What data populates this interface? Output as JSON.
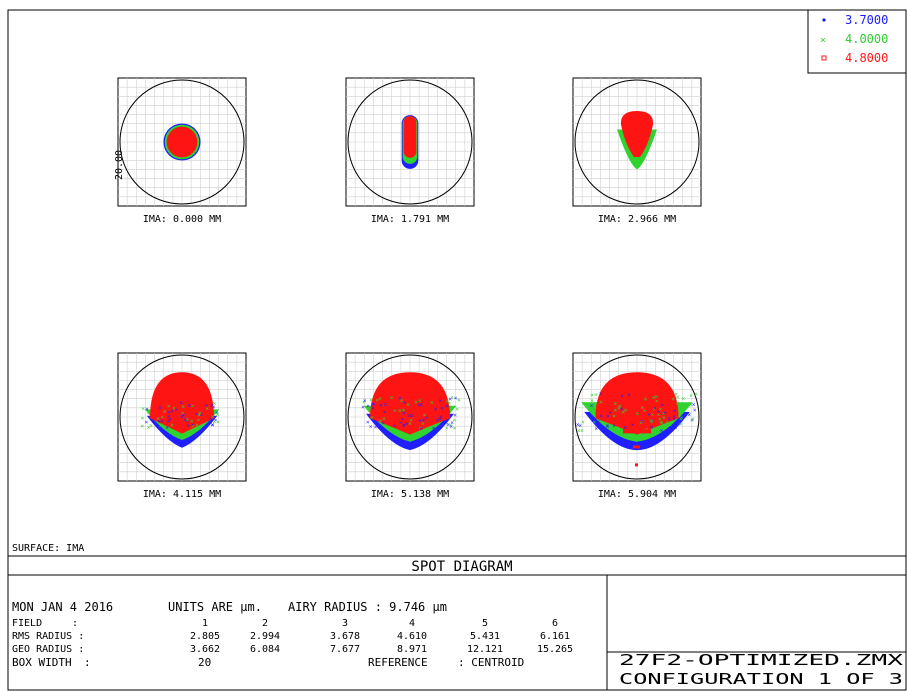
{
  "legend": [
    {
      "label": "3.7000",
      "color": "#1a1aff",
      "marker": "dot"
    },
    {
      "label": "4.0000",
      "color": "#33cc33",
      "marker": "cross"
    },
    {
      "label": "4.8000",
      "color": "#ff1a1a",
      "marker": "square"
    }
  ],
  "chart_data": {
    "type": "scatter",
    "title": "SPOT DIAGRAM",
    "scale_label": "20.00",
    "surface": "SURFACE: IMA",
    "series_names": [
      "3.7000",
      "4.0000",
      "4.8000"
    ],
    "spots": [
      {
        "field": 1,
        "label": "IMA: 0.000 MM",
        "kind": "disc",
        "blue_r": 0.29,
        "green_r": 0.27,
        "red_r": 0.24
      },
      {
        "field": 2,
        "label": "IMA: 1.791 MM",
        "kind": "pill",
        "half_width": 0.13,
        "half_height": 0.42
      },
      {
        "field": 3,
        "label": "IMA: 2.966 MM",
        "kind": "comet",
        "extent": 0.78
      },
      {
        "field": 4,
        "label": "IMA: 4.115 MM",
        "kind": "fan",
        "extent": 1.0
      },
      {
        "field": 5,
        "label": "IMA: 5.138 MM",
        "kind": "fan",
        "extent": 1.25
      },
      {
        "field": 6,
        "label": "IMA: 5.904 MM",
        "kind": "fan",
        "extent": 1.5
      }
    ]
  },
  "footer": {
    "title": "SPOT DIAGRAM",
    "date": "MON JAN 4 2016",
    "units": "UNITS ARE µm.",
    "airy": "AIRY RADIUS : 9.746 µm",
    "field_label": "FIELD",
    "rms_label": "RMS RADIUS :",
    "geo_label": "GEO RADIUS :",
    "box_label": "BOX WIDTH",
    "box_value": "20",
    "reference": "REFERENCE",
    "reference_value": ": CENTROID",
    "fields": [
      "1",
      "2",
      "3",
      "4",
      "5",
      "6"
    ],
    "rms": [
      "2.805",
      "2.994",
      "3.678",
      "4.610",
      "5.431",
      "6.161"
    ],
    "geo": [
      "3.662",
      "6.084",
      "7.677",
      "8.971",
      "12.121",
      "15.265"
    ],
    "file": "27F2-OPTIMIZED.ZMX",
    "config": "CONFIGURATION 1 OF 3"
  }
}
